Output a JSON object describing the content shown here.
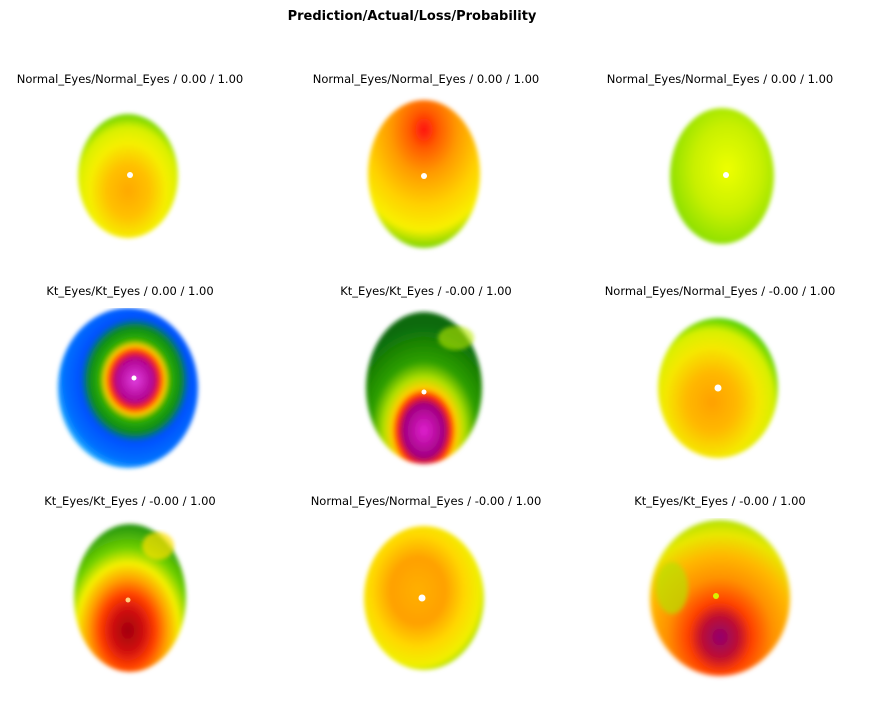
{
  "figure": {
    "title": "Prediction/Actual/Loss/Probability",
    "panels": [
      {
        "label": "Normal_Eyes/Normal_Eyes / 0.00 / 1.00",
        "colormap": "normal-yellow-orange"
      },
      {
        "label": "Normal_Eyes/Normal_Eyes / 0.00 / 1.00",
        "colormap": "normal-orange-red-top"
      },
      {
        "label": "Normal_Eyes/Normal_Eyes / 0.00 / 1.00",
        "colormap": "normal-green-yellow"
      },
      {
        "label": "Kt_Eyes/Kt_Eyes / 0.00 / 1.00",
        "colormap": "kt-blue-magenta-center"
      },
      {
        "label": "Kt_Eyes/Kt_Eyes / -0.00 / 1.00",
        "colormap": "kt-green-magenta-bottom"
      },
      {
        "label": "Normal_Eyes/Normal_Eyes / -0.00 / 1.00",
        "colormap": "normal-yellow-orange"
      },
      {
        "label": "Kt_Eyes/Kt_Eyes / -0.00 / 1.00",
        "colormap": "kt-green-red-bottom"
      },
      {
        "label": "Normal_Eyes/Normal_Eyes / -0.00 / 1.00",
        "colormap": "normal-yellow-orange"
      },
      {
        "label": "Kt_Eyes/Kt_Eyes / -0.00 / 1.00",
        "colormap": "kt-orange-red-bottom"
      }
    ]
  }
}
